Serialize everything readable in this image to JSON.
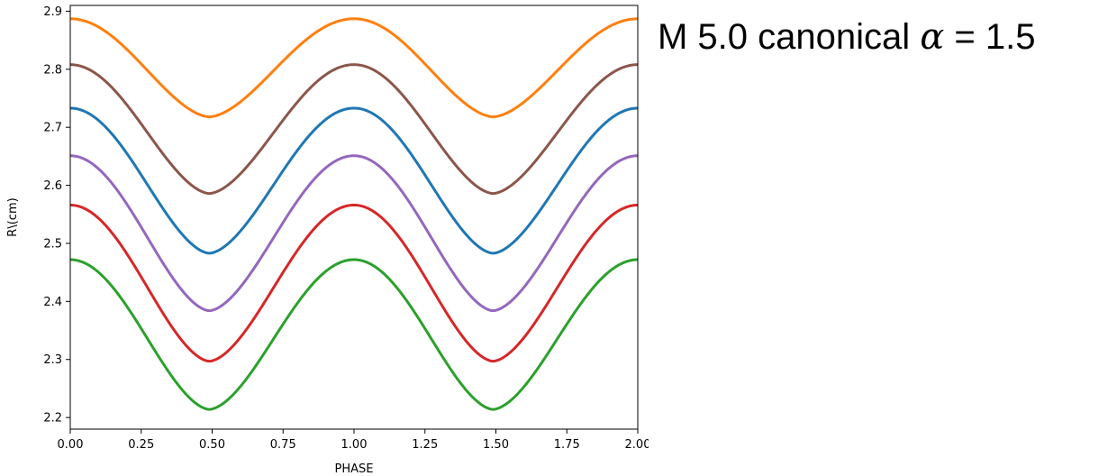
{
  "annotation": {
    "prefix": "M 5.0 canonical",
    "symbol": "α",
    "suffix": "= 1.5"
  },
  "chart_data": {
    "type": "line",
    "title": "",
    "xlabel": "PHASE",
    "ylabel": "R\\(cm)",
    "xlim": [
      0,
      2
    ],
    "ylim": [
      2.18,
      2.91
    ],
    "xticks": [
      "0.00",
      "0.25",
      "0.50",
      "0.75",
      "1.00",
      "1.25",
      "1.50",
      "1.75",
      "2.00"
    ],
    "yticks": [
      "2.2",
      "2.3",
      "2.4",
      "2.5",
      "2.6",
      "2.7",
      "2.8",
      "2.9"
    ],
    "grid": false,
    "legend": "none",
    "series": [
      {
        "color": "#ff7f0e",
        "max": 2.887,
        "min": 2.718
      },
      {
        "color": "#8c564b",
        "max": 2.808,
        "min": 2.586
      },
      {
        "color": "#1f77b4",
        "max": 2.733,
        "min": 2.483
      },
      {
        "color": "#9467bd",
        "max": 2.651,
        "min": 2.384
      },
      {
        "color": "#d62728",
        "max": 2.566,
        "min": 2.297
      },
      {
        "color": "#2ca02c",
        "max": 2.472,
        "min": 2.214
      }
    ],
    "min_phase": [
      0.49,
      1.49
    ],
    "max_phase": [
      0.0,
      1.0,
      2.0
    ]
  }
}
